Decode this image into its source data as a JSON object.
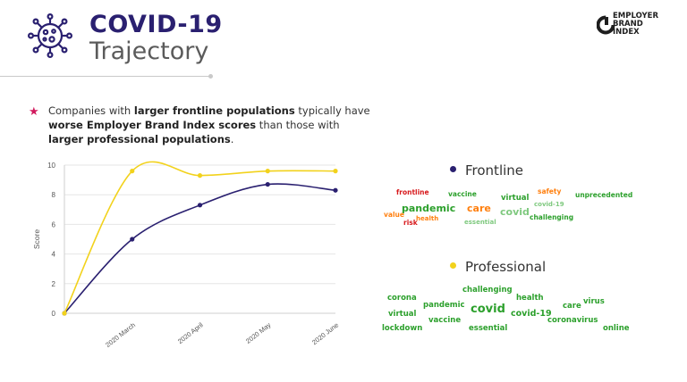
{
  "header": {
    "title_line1": "COVID-19",
    "title_line2": "Trajectory",
    "icon": "virus-icon",
    "logo_icon": "employer-brand-index-logo",
    "logo_text": [
      "EMPLOYER",
      "BRAND",
      "INDEX"
    ]
  },
  "bullet": {
    "p1": "Companies with ",
    "b1": "larger frontline populations",
    "p2": " typically have ",
    "b2": "worse Employer Brand Index scores",
    "p3": " than those with ",
    "b3": "larger professional populations",
    "p4": "."
  },
  "chart_data": {
    "type": "line",
    "categories": [
      "",
      "2020 March",
      "2020 April",
      "2020 May",
      "2020 June"
    ],
    "ylabel": "Score",
    "xlabel": "",
    "ylim": [
      0,
      10
    ],
    "yticks": [
      0,
      2,
      4,
      6,
      8,
      10
    ],
    "grid": true,
    "series": [
      {
        "name": "Frontline",
        "color": "#2a2070",
        "values": [
          0,
          5.0,
          7.3,
          8.7,
          8.3
        ]
      },
      {
        "name": "Professional",
        "color": "#f2d21c",
        "values": [
          0,
          9.6,
          9.3,
          9.6,
          9.6
        ]
      }
    ]
  },
  "legend": {
    "frontline": {
      "label": "Frontline",
      "color": "#2a2070"
    },
    "professional": {
      "label": "Professional",
      "color": "#f2d21c"
    }
  },
  "wordclouds": {
    "frontline": [
      {
        "text": "frontline",
        "color": "#d7191c"
      },
      {
        "text": "vaccine",
        "color": "#2ca02c"
      },
      {
        "text": "virtual",
        "color": "#2ca02c"
      },
      {
        "text": "safety",
        "color": "#ff7f0e"
      },
      {
        "text": "unprecedented",
        "color": "#2ca02c"
      },
      {
        "text": "covid-19",
        "color": "#7fc97f"
      },
      {
        "text": "pandemic",
        "color": "#2ca02c"
      },
      {
        "text": "care",
        "color": "#ff7f0e"
      },
      {
        "text": "covid",
        "color": "#7fc97f"
      },
      {
        "text": "value",
        "color": "#ff7f0e"
      },
      {
        "text": "risk",
        "color": "#d7191c"
      },
      {
        "text": "health",
        "color": "#ff7f0e"
      },
      {
        "text": "essential",
        "color": "#7fc97f"
      },
      {
        "text": "challenging",
        "color": "#2ca02c"
      }
    ],
    "professional": [
      {
        "text": "challenging",
        "color": "#2ca02c"
      },
      {
        "text": "corona",
        "color": "#2ca02c"
      },
      {
        "text": "health",
        "color": "#2ca02c"
      },
      {
        "text": "virus",
        "color": "#2ca02c"
      },
      {
        "text": "pandemic",
        "color": "#2ca02c"
      },
      {
        "text": "care",
        "color": "#2ca02c"
      },
      {
        "text": "covid",
        "color": "#2ca02c"
      },
      {
        "text": "virtual",
        "color": "#2ca02c"
      },
      {
        "text": "covid-19",
        "color": "#2ca02c"
      },
      {
        "text": "vaccine",
        "color": "#2ca02c"
      },
      {
        "text": "coronavirus",
        "color": "#2ca02c"
      },
      {
        "text": "lockdown",
        "color": "#2ca02c"
      },
      {
        "text": "essential",
        "color": "#2ca02c"
      },
      {
        "text": "online",
        "color": "#2ca02c"
      }
    ]
  }
}
